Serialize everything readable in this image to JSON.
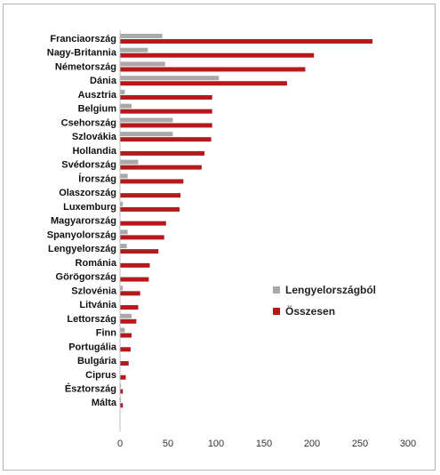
{
  "chart_data": {
    "type": "bar",
    "orientation": "horizontal",
    "categories": [
      "Franciaország",
      "Nagy-Britannia",
      "Németország",
      "Dánia",
      "Ausztria",
      "Belgium",
      "Csehország",
      "Szlovákia",
      "Hollandia",
      "Svédország",
      "Írország",
      "Olaszország",
      "Luxemburg",
      "Magyarország",
      "Spanyolország",
      "Lengyelország",
      "Románia",
      "Görögország",
      "Szlovénia",
      "Litvánia",
      "Lettország",
      "Finn",
      "Portugália",
      "Bulgária",
      "Ciprus",
      "Észtország",
      "Málta"
    ],
    "series": [
      {
        "name": "Lengyelországból",
        "color": "#a9a9a9",
        "values": [
          44,
          29,
          47,
          103,
          5,
          12,
          55,
          55,
          0,
          19,
          8,
          0,
          3,
          0,
          8,
          7,
          0,
          0,
          3,
          0,
          12,
          5,
          0,
          0,
          0,
          1,
          1
        ]
      },
      {
        "name": "Összesen",
        "color": "#b5191c",
        "values": [
          263,
          202,
          193,
          174,
          96,
          96,
          96,
          95,
          88,
          85,
          66,
          63,
          62,
          48,
          46,
          40,
          31,
          30,
          21,
          19,
          17,
          12,
          11,
          9,
          6,
          3,
          3
        ]
      }
    ],
    "xlim": [
      0,
      300
    ],
    "xticks": [
      0,
      50,
      100,
      150,
      200,
      250,
      300
    ],
    "legend": "right-middle",
    "grid": false
  }
}
